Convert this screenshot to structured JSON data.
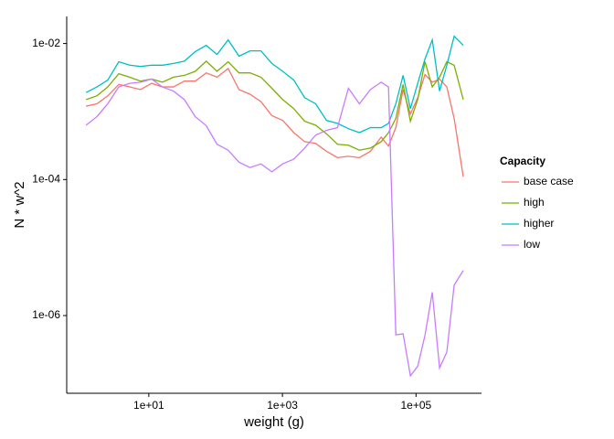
{
  "chart_data": {
    "type": "line",
    "x_label": "weight (g)",
    "y_label": "N * w^2",
    "legend_title": "Capacity",
    "xscale": "log",
    "yscale": "log",
    "xlim": [
      0.59,
      955000
    ],
    "ylim": [
      7.2e-08,
      0.025
    ],
    "xticks": [
      {
        "value": 10,
        "label": "1e+01"
      },
      {
        "value": 1000,
        "label": "1e+03"
      },
      {
        "value": 100000,
        "label": "1e+05"
      }
    ],
    "yticks": [
      {
        "value": 0.01,
        "label": "1e-02"
      },
      {
        "value": 0.0001,
        "label": "1e-04"
      },
      {
        "value": 1e-06,
        "label": "1e-06"
      }
    ],
    "x": [
      1.15,
      1.67,
      2.43,
      3.55,
      5.17,
      7.54,
      11.0,
      16.0,
      23.4,
      34.0,
      49.6,
      72.3,
      105,
      154,
      224,
      327,
      477,
      695,
      1010,
      1480,
      2150,
      3140,
      4570,
      6670,
      9720,
      14200,
      20700,
      30100,
      38700,
      49800,
      64000,
      82300,
      106000,
      136000,
      175000,
      225000,
      289000,
      372000,
      509000
    ],
    "series": [
      {
        "name": "base case",
        "color": "#F8766D",
        "values": [
          0.0012,
          0.0013,
          0.0017,
          0.0025,
          0.0023,
          0.0021,
          0.0026,
          0.0023,
          0.0023,
          0.0028,
          0.0028,
          0.0037,
          0.0032,
          0.0043,
          0.0021,
          0.0018,
          0.0014,
          0.00087,
          0.00074,
          0.00049,
          0.00036,
          0.00034,
          0.00026,
          0.00021,
          0.00022,
          0.00021,
          0.00026,
          0.00042,
          0.00031,
          0.00058,
          0.0021,
          0.00092,
          0.0016,
          0.0035,
          0.0027,
          0.003,
          0.0023,
          0.00079,
          0.00011
        ]
      },
      {
        "name": "high",
        "color": "#7CAE00",
        "values": [
          0.0015,
          0.0017,
          0.0023,
          0.0036,
          0.0032,
          0.0028,
          0.003,
          0.0027,
          0.0032,
          0.0034,
          0.0039,
          0.0055,
          0.0039,
          0.0054,
          0.0037,
          0.0037,
          0.0032,
          0.0022,
          0.0015,
          0.0011,
          0.00072,
          0.00063,
          0.00047,
          0.00033,
          0.00032,
          0.00027,
          0.00029,
          0.00036,
          0.00049,
          0.00079,
          0.0025,
          0.00072,
          0.0015,
          0.0054,
          0.0023,
          0.0032,
          0.0054,
          0.0048,
          0.0015
        ]
      },
      {
        "name": "higher",
        "color": "#00BFC4",
        "values": [
          0.0019,
          0.0023,
          0.0029,
          0.0054,
          0.0048,
          0.0046,
          0.0048,
          0.0048,
          0.0051,
          0.0055,
          0.0076,
          0.0094,
          0.0069,
          0.0113,
          0.0065,
          0.0078,
          0.0078,
          0.0051,
          0.0039,
          0.0029,
          0.0016,
          0.0013,
          0.00074,
          0.00067,
          0.00056,
          0.00049,
          0.00058,
          0.00058,
          0.00067,
          0.0013,
          0.0034,
          0.0011,
          0.0026,
          0.0059,
          0.0113,
          0.002,
          0.0048,
          0.0128,
          0.0094
        ]
      },
      {
        "name": "low",
        "color": "#C77CFF",
        "values": [
          0.00063,
          0.00084,
          0.0013,
          0.0023,
          0.0026,
          0.0027,
          0.003,
          0.0023,
          0.002,
          0.0015,
          0.00084,
          0.00062,
          0.00033,
          0.00027,
          0.00018,
          0.00015,
          0.00017,
          0.00013,
          0.00017,
          0.0002,
          0.00029,
          0.00045,
          0.00053,
          0.00058,
          0.0022,
          0.0013,
          0.0021,
          0.0027,
          0.0023,
          5.2e-07,
          5.4e-07,
          1.3e-07,
          1.8e-07,
          5.1e-07,
          2.2e-06,
          1.7e-07,
          2.9e-07,
          2.8e-06,
          4.6e-06
        ]
      }
    ]
  }
}
